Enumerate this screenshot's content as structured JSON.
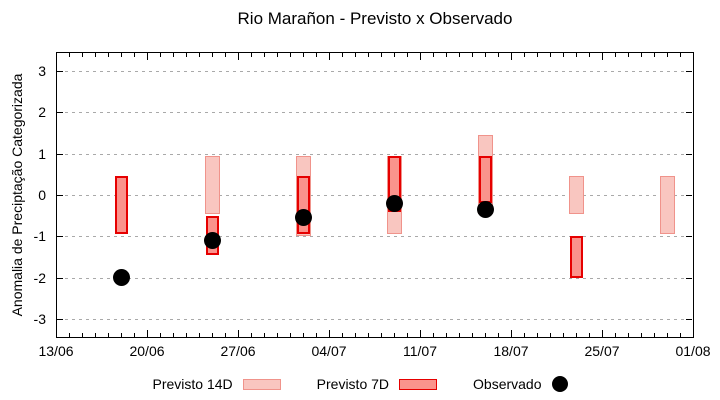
{
  "title": "Rio Marañon - Previsto x Observado",
  "chart_data": {
    "type": "bar",
    "subtype": "range-bars-with-observed-scatter",
    "title": "Rio Marañon - Previsto x Observado",
    "xlabel": "",
    "ylabel": "Anomalia de Preciptação Categorizada",
    "ylim": [
      -3.46,
      3.46
    ],
    "y_ticks": [
      3,
      2,
      1,
      0,
      -1,
      -2,
      -3
    ],
    "x_tick_labels": [
      "13/06",
      "20/06",
      "27/06",
      "04/07",
      "11/07",
      "18/07",
      "25/07",
      "01/08"
    ],
    "x_major_tick_interval_days": 7,
    "x_minor_tick_interval_days": 1,
    "x_axis_total_days": 49,
    "grid": "horizontal dashed lines at integer y values",
    "legend_position": "bottom center",
    "groups": [
      {
        "date": "18/06",
        "day": 5,
        "previsto14": null,
        "previsto7": [
          -0.95,
          0.45
        ],
        "observado": -2.0
      },
      {
        "date": "25/06",
        "day": 12,
        "previsto14": [
          -0.45,
          0.95
        ],
        "previsto7": [
          -1.45,
          -0.5
        ],
        "observado": -1.1
      },
      {
        "date": "02/07",
        "day": 19,
        "previsto14": [
          -1.0,
          0.95
        ],
        "previsto7": [
          -0.95,
          0.45
        ],
        "observado": -0.55
      },
      {
        "date": "09/07",
        "day": 26,
        "previsto14": [
          -0.95,
          0.95
        ],
        "previsto7": [
          -0.4,
          0.95
        ],
        "observado": -0.2
      },
      {
        "date": "16/07",
        "day": 33,
        "previsto14": [
          -0.45,
          1.45
        ],
        "previsto7": [
          -0.2,
          0.95
        ],
        "observado": -0.35
      },
      {
        "date": "23/07",
        "day": 40,
        "previsto14": [
          -0.45,
          0.45
        ],
        "previsto7": [
          -2.0,
          -1.0
        ],
        "observado": null
      },
      {
        "date": "30/07",
        "day": 47,
        "previsto14": [
          -0.95,
          0.45
        ],
        "previsto7": null,
        "observado": null
      }
    ],
    "legend": [
      {
        "label": "Previsto 14D",
        "swatch": "rect",
        "fill": "#f9c6c0",
        "border": "#f0938b"
      },
      {
        "label": "Previsto 7D",
        "swatch": "rect",
        "fill": "#fa938c",
        "border": "#e60000"
      },
      {
        "label": "Observado",
        "swatch": "dot",
        "fill": "#000000"
      }
    ],
    "colors": {
      "previsto14_fill": "#f9c6c0",
      "previsto14_border": "#f0938b",
      "previsto7_fill": "#fa938c",
      "previsto7_border": "#e60000",
      "observado": "#000000",
      "grid": "#a9a9a9",
      "axis": "#000000",
      "background": "#ffffff"
    }
  }
}
